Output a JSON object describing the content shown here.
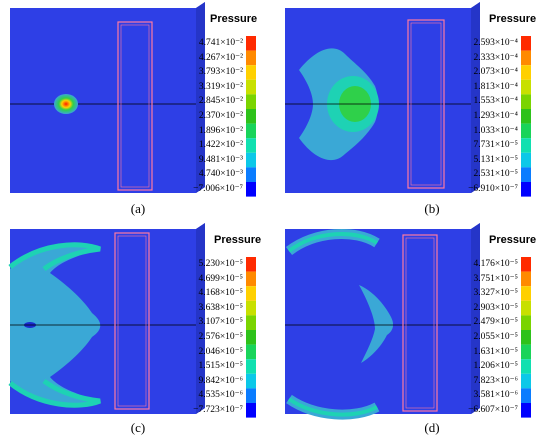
{
  "legend_colors": [
    "#0000ff",
    "#0a7cff",
    "#0cc8e8",
    "#10e0b0",
    "#19d45a",
    "#2ec21a",
    "#7ad400",
    "#c8e000",
    "#ffd000",
    "#ff8a00",
    "#ff2a00"
  ],
  "colors": {
    "background": "#2e3fe6",
    "field_light": "#3aa8d6",
    "field_mid": "#1ed2b4",
    "field_hot": "#2fd04a",
    "cross_line": "#000000",
    "rect_outline": "#ff7aa0"
  },
  "panels": [
    {
      "id": "a",
      "caption": "(a)",
      "legend_title": "Pressure",
      "labels": [
        "4.741×10⁻²",
        "4.267×10⁻²",
        "3.793×10⁻²",
        "3.319×10⁻²",
        "2.845×10⁻²",
        "2.370×10⁻²",
        "1.896×10⁻²",
        "1.422×10⁻²",
        "9.481×10⁻³",
        "4.740×10⁻³",
        "−7.006×10⁻⁷"
      ]
    },
    {
      "id": "b",
      "caption": "(b)",
      "legend_title": "Pressure",
      "labels": [
        "2.593×10⁻⁴",
        "2.333×10⁻⁴",
        "2.073×10⁻⁴",
        "1.813×10⁻⁴",
        "1.553×10⁻⁴",
        "1.293×10⁻⁴",
        "1.033×10⁻⁴",
        "7.731×10⁻⁵",
        "5.131×10⁻⁵",
        "2.531×10⁻⁵",
        "−6.910×10⁻⁷"
      ]
    },
    {
      "id": "c",
      "caption": "(c)",
      "legend_title": "Pressure",
      "labels": [
        "5.230×10⁻⁵",
        "4.699×10⁻⁵",
        "4.168×10⁻⁵",
        "3.638×10⁻⁵",
        "3.107×10⁻⁵",
        "2.576×10⁻⁵",
        "2.046×10⁻⁵",
        "1.515×10⁻⁵",
        "9.842×10⁻⁶",
        "4.535×10⁻⁶",
        "−7.723×10⁻⁷"
      ]
    },
    {
      "id": "d",
      "caption": "(d)",
      "legend_title": "Pressure",
      "labels": [
        "4.176×10⁻⁵",
        "3.751×10⁻⁵",
        "3.327×10⁻⁵",
        "2.903×10⁻⁵",
        "2.479×10⁻⁵",
        "2.055×10⁻⁵",
        "1.631×10⁻⁵",
        "1.206×10⁻⁵",
        "7.823×10⁻⁶",
        "3.581×10⁻⁶",
        "−6.607×10⁻⁷"
      ]
    }
  ]
}
